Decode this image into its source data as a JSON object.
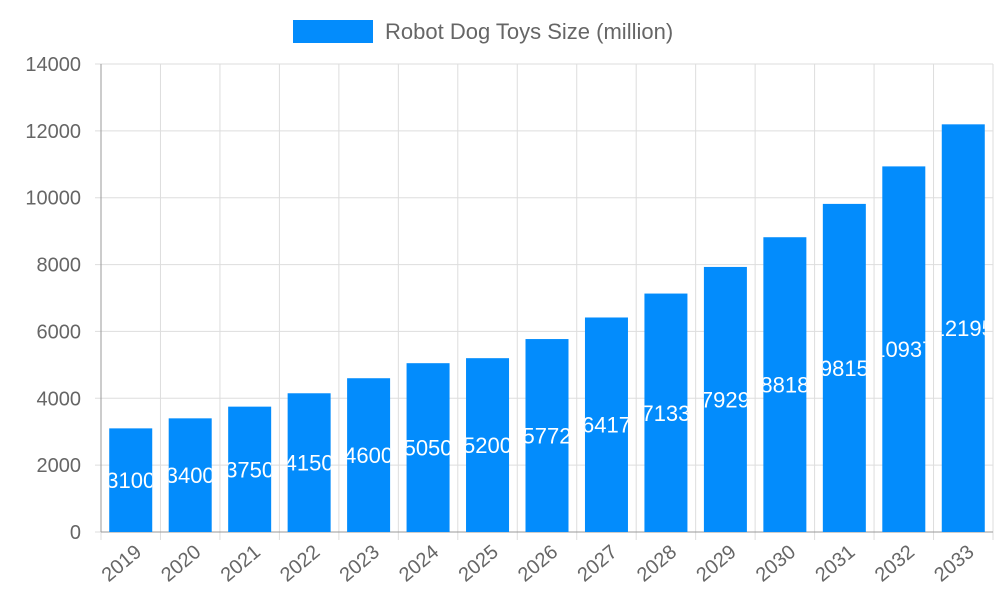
{
  "chart_data": {
    "type": "bar",
    "title": "",
    "xlabel": "",
    "ylabel": "",
    "categories": [
      "2019",
      "2020",
      "2021",
      "2022",
      "2023",
      "2024",
      "2025",
      "2026",
      "2027",
      "2028",
      "2029",
      "2030",
      "2031",
      "2032",
      "2033"
    ],
    "series": [
      {
        "name": "Robot Dog Toys Size (million)",
        "values": [
          3100,
          3400,
          3750,
          4150,
          4600,
          5050,
          5200,
          5772,
          6417,
          7133,
          7929,
          8818,
          9815,
          10937,
          12195
        ],
        "color": "#038cfc"
      }
    ],
    "ylim": [
      0,
      14000
    ],
    "yticks": [
      0,
      2000,
      4000,
      6000,
      8000,
      10000,
      12000,
      14000
    ],
    "grid": true,
    "legend": "top"
  }
}
